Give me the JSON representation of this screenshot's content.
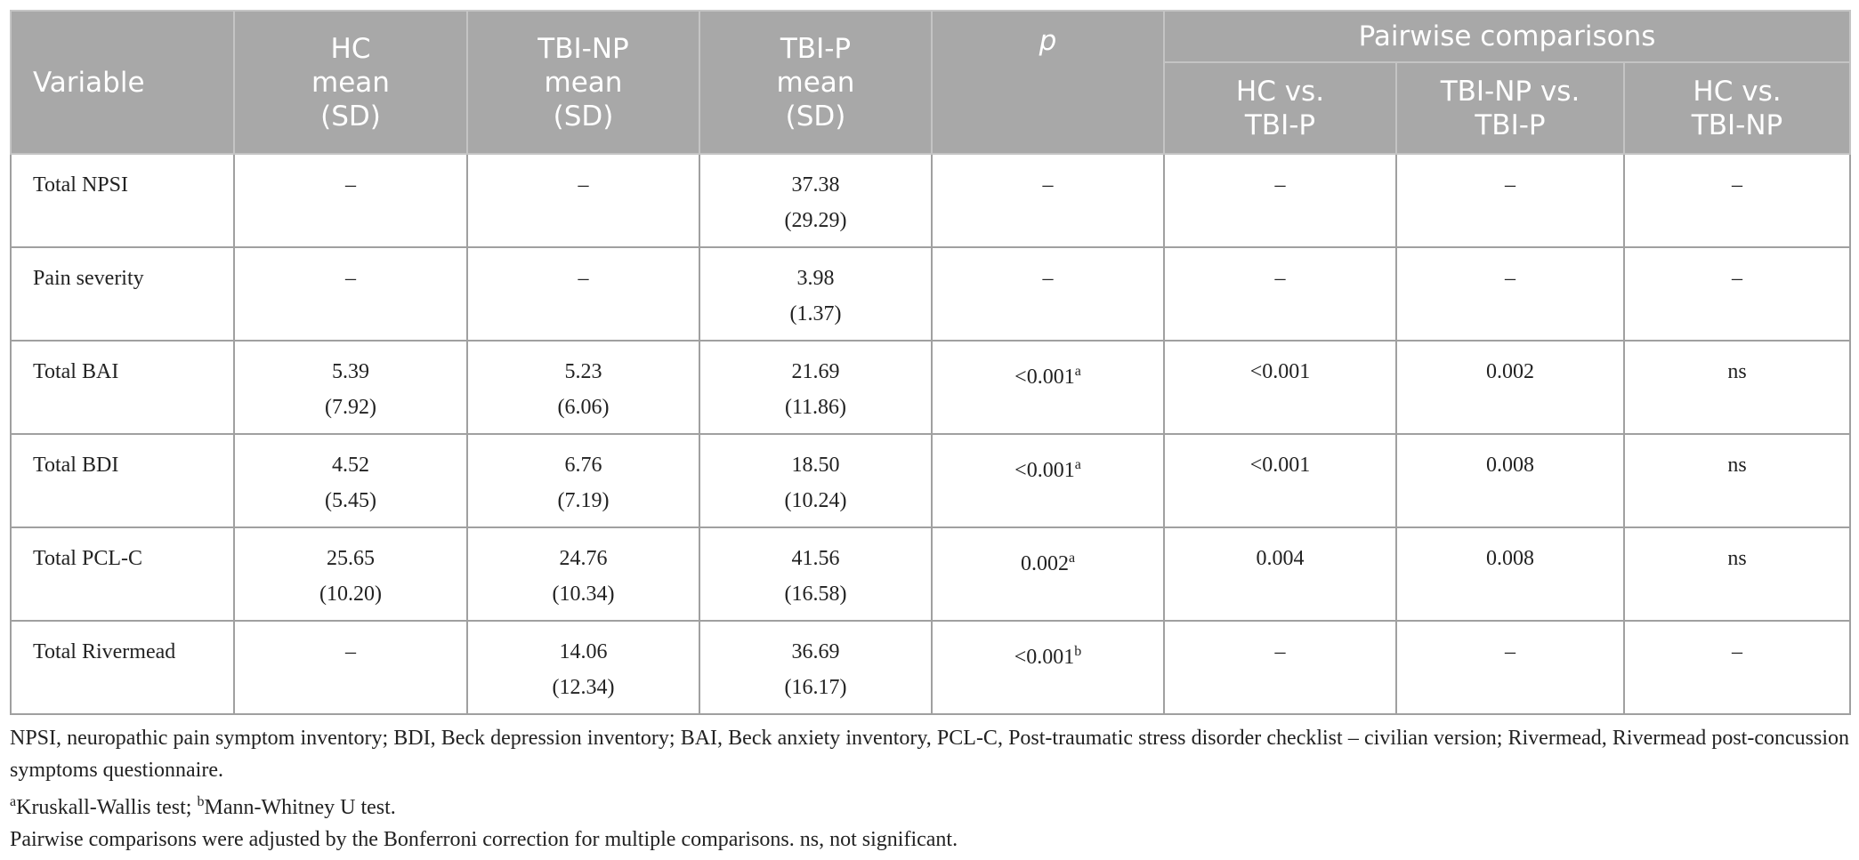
{
  "header": {
    "variable": "Variable",
    "groups": [
      [
        "HC",
        "mean",
        "(SD)"
      ],
      [
        "TBI-NP",
        "mean",
        "(SD)"
      ],
      [
        "TBI-P",
        "mean",
        "(SD)"
      ]
    ],
    "p": "p",
    "pairwise": "Pairwise comparisons",
    "comparisons": [
      [
        "HC vs.",
        "TBI-P"
      ],
      [
        "TBI-NP vs.",
        "TBI-P"
      ],
      [
        "HC vs.",
        "TBI-NP"
      ]
    ]
  },
  "rows": [
    [
      "Total NPSI",
      "–",
      "–",
      [
        "37.38",
        "(29.29)"
      ],
      "–",
      "–",
      "–",
      "–"
    ],
    [
      "Pain severity",
      "–",
      "–",
      [
        "3.98",
        "(1.37)"
      ],
      "–",
      "–",
      "–",
      "–"
    ],
    [
      "Total BAI",
      [
        "5.39",
        "(7.92)"
      ],
      [
        "5.23",
        "(6.06)"
      ],
      [
        "21.69",
        "(11.86)"
      ],
      {
        "text": "<0.001",
        "sup": "a"
      },
      "<0.001",
      "0.002",
      "ns"
    ],
    [
      "Total BDI",
      [
        "4.52",
        "(5.45)"
      ],
      [
        "6.76",
        "(7.19)"
      ],
      [
        "18.50",
        "(10.24)"
      ],
      {
        "text": "<0.001",
        "sup": "a"
      },
      "<0.001",
      "0.008",
      "ns"
    ],
    [
      "Total PCL-C",
      [
        "25.65",
        "(10.20)"
      ],
      [
        "24.76",
        "(10.34)"
      ],
      [
        "41.56",
        "(16.58)"
      ],
      {
        "text": "0.002",
        "sup": "a"
      },
      "0.004",
      "0.008",
      "ns"
    ],
    [
      "Total Rivermead",
      "–",
      [
        "14.06",
        "(12.34)"
      ],
      [
        "36.69",
        "(16.17)"
      ],
      {
        "text": "<0.001",
        "sup": "b"
      },
      "–",
      "–",
      "–"
    ]
  ],
  "footnotes": {
    "abbreviations": "NPSI, neuropathic pain symptom inventory; BDI, Beck depression inventory; BAI, Beck anxiety inventory, PCL-C, Post-traumatic stress disorder checklist – civilian version; Rivermead, Rivermead post-concussion symptoms questionnaire.",
    "tests": [
      {
        "sup": "a",
        "text": "Kruskall-Wallis test; "
      },
      {
        "sup": "b",
        "text": "Mann-Whitney U test."
      }
    ],
    "adjustment": "Pairwise comparisons were adjusted by the Bonferroni correction for multiple comparisons. ns, not significant."
  }
}
